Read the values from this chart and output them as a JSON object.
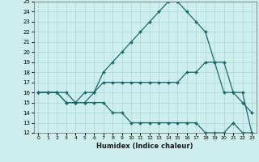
{
  "xlabel": "Humidex (Indice chaleur)",
  "bg_color": "#ceeeed",
  "grid_color": "#a8d8d8",
  "line_color": "#1a6b6b",
  "xlim": [
    -0.5,
    23.5
  ],
  "ylim": [
    12,
    25
  ],
  "xticks": [
    0,
    1,
    2,
    3,
    4,
    5,
    6,
    7,
    8,
    9,
    10,
    11,
    12,
    13,
    14,
    15,
    16,
    17,
    18,
    19,
    20,
    21,
    22,
    23
  ],
  "yticks": [
    12,
    13,
    14,
    15,
    16,
    17,
    18,
    19,
    20,
    21,
    22,
    23,
    24,
    25
  ],
  "line1_x": [
    0,
    1,
    2,
    3,
    4,
    5,
    6,
    7,
    8,
    9,
    10,
    11,
    12,
    13,
    14,
    15,
    16,
    17,
    18,
    19,
    20,
    21,
    22,
    23
  ],
  "line1_y": [
    16,
    16,
    16,
    15,
    15,
    16,
    16,
    18,
    19,
    20,
    21,
    22,
    23,
    24,
    25,
    25,
    24,
    23,
    22,
    19,
    19,
    16,
    15,
    14
  ],
  "line2_x": [
    0,
    1,
    2,
    3,
    4,
    5,
    6,
    7,
    8,
    9,
    10,
    11,
    12,
    13,
    14,
    15,
    16,
    17,
    18,
    19,
    20,
    21,
    22,
    23
  ],
  "line2_y": [
    16,
    16,
    16,
    16,
    15,
    15,
    16,
    17,
    17,
    17,
    17,
    17,
    17,
    17,
    17,
    17,
    18,
    18,
    19,
    19,
    16,
    16,
    16,
    12
  ],
  "line3_x": [
    0,
    1,
    2,
    3,
    4,
    5,
    6,
    7,
    8,
    9,
    10,
    11,
    12,
    13,
    14,
    15,
    16,
    17,
    18,
    19,
    20,
    21,
    22,
    23
  ],
  "line3_y": [
    16,
    16,
    16,
    15,
    15,
    15,
    15,
    15,
    14,
    14,
    13,
    13,
    13,
    13,
    13,
    13,
    13,
    13,
    12,
    12,
    12,
    13,
    12,
    12
  ]
}
